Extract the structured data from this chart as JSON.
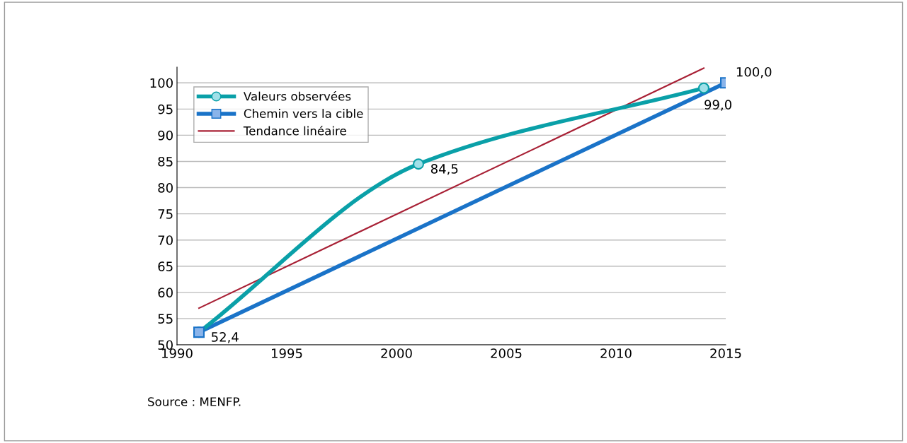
{
  "chart_data": {
    "type": "line",
    "series": [
      {
        "name": "Valeurs observées",
        "color": "#0aa0a8",
        "marker": "circle",
        "x": [
          1991,
          2001,
          2014
        ],
        "values": [
          52.4,
          84.5,
          99.0
        ],
        "value_labels": [
          "52,4",
          "84,5",
          "99,0"
        ]
      },
      {
        "name": "Chemin vers la cible",
        "color": "#1a73c8",
        "marker": "square",
        "x": [
          1991,
          2015
        ],
        "values": [
          52.4,
          100.0
        ],
        "value_labels": [
          null,
          "100,0"
        ]
      },
      {
        "name": "Tendance linéaire",
        "color": "#a82035",
        "marker": "none",
        "x": [
          1991,
          2014
        ],
        "values": [
          57.0,
          102.8
        ]
      }
    ],
    "xlim": [
      1990,
      2015
    ],
    "xticks": [
      1990,
      1995,
      2000,
      2005,
      2010,
      2015
    ],
    "ylim": [
      50,
      103
    ],
    "yticks": [
      50,
      55,
      60,
      65,
      70,
      75,
      80,
      85,
      90,
      95,
      100
    ],
    "grid": "y",
    "legend": "top left",
    "annotations": [
      "Source : MENFP."
    ]
  }
}
